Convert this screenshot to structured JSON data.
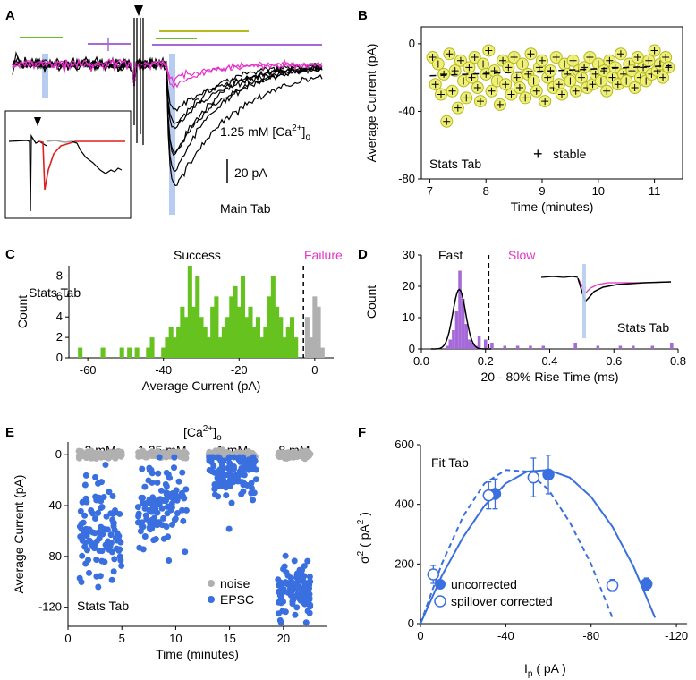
{
  "panels": {
    "A": {
      "letter": "A",
      "conc": "1.25 mM [Ca",
      "conc_sup": "2+",
      "conc_sub": "o",
      "scale": "20 pA",
      "tab": "Main Tab"
    },
    "B": {
      "letter": "B",
      "tab": "Stats Tab",
      "legend": "stable"
    },
    "C": {
      "letter": "C",
      "tab": "Stats Tab",
      "success": "Success",
      "failure": "Failure"
    },
    "D": {
      "letter": "D",
      "tab": "Stats Tab",
      "fast": "Fast",
      "slow": "Slow"
    },
    "E": {
      "letter": "E",
      "tab": "Stats Tab",
      "header": "[Ca",
      "header_sup": "2+",
      "header_sub": "o",
      "legend_noise": "noise",
      "legend_epsc": "EPSC"
    },
    "F": {
      "letter": "F",
      "tab": "Fit Tab",
      "legend_unc": "uncorrected",
      "legend_sc": "spillover corrected",
      "ylabel_a": "σ",
      "ylabel_sup1": "2",
      "ylabel_b": " ( pA",
      "ylabel_sup2": "2",
      "ylabel_c": " )",
      "xlabel_a": "I",
      "xlabel_sub": "p",
      "xlabel_b": " ( pA )"
    }
  },
  "colors": {
    "green": "#66c31f",
    "magenta": "#e432c8",
    "purple": "#a66ad8",
    "olive": "#b8b820",
    "blue": "#3a6fe0",
    "gray": "#b0b0b0",
    "lightblue": "#b8ccf0",
    "yellow": "#eef07a"
  },
  "chart_data": [
    {
      "panel": "B",
      "type": "scatter",
      "xlabel": "Time (minutes)",
      "ylabel": "Average Current (pA)",
      "xlim": [
        6.85,
        11.5
      ],
      "ylim": [
        -80,
        10
      ],
      "xticks": [
        7,
        8,
        9,
        10,
        11
      ],
      "yticks": [
        0,
        -40,
        -80
      ],
      "series": [
        {
          "name": "stable",
          "x": [
            7.05,
            7.1,
            7.15,
            7.2,
            7.25,
            7.3,
            7.35,
            7.4,
            7.45,
            7.5,
            7.55,
            7.6,
            7.65,
            7.7,
            7.75,
            7.8,
            7.85,
            7.9,
            7.95,
            8.0,
            8.05,
            8.1,
            8.15,
            8.2,
            8.25,
            8.3,
            8.35,
            8.4,
            8.45,
            8.5,
            8.55,
            8.6,
            8.65,
            8.7,
            8.75,
            8.8,
            8.85,
            8.9,
            8.95,
            9.0,
            9.05,
            9.1,
            9.15,
            9.2,
            9.25,
            9.3,
            9.35,
            9.4,
            9.45,
            9.5,
            9.55,
            9.6,
            9.65,
            9.7,
            9.75,
            9.8,
            9.85,
            9.9,
            9.95,
            10.0,
            10.05,
            10.1,
            10.15,
            10.2,
            10.25,
            10.3,
            10.35,
            10.4,
            10.45,
            10.5,
            10.55,
            10.6,
            10.65,
            10.7,
            10.75,
            10.8,
            10.85,
            10.9,
            10.95,
            11.0,
            11.05,
            11.1,
            11.15,
            11.2,
            11.25
          ],
          "y": [
            -8,
            -24,
            -12,
            -30,
            -18,
            -46,
            -6,
            -28,
            -16,
            -38,
            -10,
            -22,
            -32,
            -14,
            -20,
            -8,
            -26,
            -34,
            -12,
            -18,
            -4,
            -28,
            -16,
            -22,
            -36,
            -10,
            -24,
            -14,
            -30,
            -8,
            -20,
            -26,
            -12,
            -32,
            -18,
            -6,
            -22,
            -28,
            -14,
            -10,
            -34,
            -20,
            -16,
            -26,
            -8,
            -24,
            -30,
            -12,
            -18,
            -22,
            -10,
            -28,
            -16,
            -20,
            -14,
            -26,
            -8,
            -24,
            -18,
            -12,
            -22,
            -16,
            -28,
            -10,
            -20,
            -14,
            -24,
            -6,
            -18,
            -22,
            -12,
            -16,
            -26,
            -8,
            -20,
            -14,
            -22,
            -10,
            -18,
            -4,
            -16,
            -12,
            -20,
            -8,
            -14
          ]
        }
      ],
      "fit": {
        "x": [
          7.0,
          11.3
        ],
        "y": [
          -19,
          -13
        ]
      }
    },
    {
      "panel": "C",
      "type": "bar",
      "xlabel": "Average Current (pA)",
      "ylabel": "Count",
      "xlim": [
        -65,
        5
      ],
      "ylim": [
        0,
        9
      ],
      "xticks": [
        -60,
        -40,
        -20,
        0
      ],
      "yticks": [
        0,
        2,
        4,
        6,
        8
      ],
      "bin_width": 1.2,
      "threshold": -3,
      "series": [
        {
          "name": "Success",
          "color": "green",
          "x": [
            -62,
            -56,
            -51,
            -49,
            -47,
            -44,
            -43,
            -40,
            -39,
            -38,
            -37,
            -36,
            -35,
            -34,
            -33,
            -32,
            -31,
            -30,
            -29,
            -28,
            -27,
            -26,
            -25,
            -24,
            -23,
            -22,
            -21,
            -20,
            -19,
            -18,
            -17,
            -16,
            -15,
            -14,
            -13,
            -12,
            -11,
            -10,
            -9,
            -8,
            -7,
            -6,
            -5
          ],
          "values": [
            1,
            1,
            1,
            1,
            1,
            1,
            2,
            1,
            2,
            3,
            2,
            3,
            5,
            4,
            9,
            5,
            8,
            4,
            3,
            2,
            5,
            6,
            2,
            3,
            4,
            6,
            7,
            5,
            8,
            4,
            5,
            3,
            4,
            2,
            3,
            6,
            8,
            5,
            4,
            2,
            3,
            4,
            2
          ]
        },
        {
          "name": "Failure",
          "color": "gray",
          "x": [
            -2,
            -1,
            0,
            1,
            2
          ],
          "values": [
            4,
            2,
            6,
            5,
            1
          ]
        }
      ]
    },
    {
      "panel": "D",
      "type": "bar",
      "xlabel": "20 - 80% Rise Time (ms)",
      "ylabel": "Count",
      "xlim": [
        0,
        0.8
      ],
      "ylim": [
        0,
        30
      ],
      "xticks": [
        0.0,
        0.2,
        0.4,
        0.6,
        0.8
      ],
      "yticks": [
        0,
        10,
        20,
        30
      ],
      "threshold": 0.21,
      "series": [
        {
          "name": "rise time",
          "color": "purple",
          "x": [
            0.08,
            0.09,
            0.1,
            0.11,
            0.12,
            0.13,
            0.14,
            0.15,
            0.16,
            0.17,
            0.18,
            0.2,
            0.22,
            0.26,
            0.3,
            0.34,
            0.38,
            0.48,
            0.55,
            0.62,
            0.66,
            0.72,
            0.78
          ],
          "values": [
            1,
            3,
            6,
            12,
            25,
            16,
            8,
            3,
            2,
            1,
            4,
            3,
            2,
            1,
            1,
            1,
            1,
            2,
            1,
            1,
            1,
            1,
            2
          ]
        }
      ],
      "fit": {
        "type": "gaussian",
        "mean": 0.118,
        "sd": 0.02,
        "peak": 19
      }
    },
    {
      "panel": "E",
      "type": "scatter",
      "xlabel": "Time (minutes)",
      "ylabel": "Average Current (pA)",
      "xlim": [
        0,
        24
      ],
      "ylim": [
        -135,
        10
      ],
      "xticks": [
        0,
        5,
        10,
        15,
        20
      ],
      "yticks": [
        0,
        -40,
        -80,
        -120
      ],
      "groups": [
        {
          "label": "2 mM",
          "x_range": [
            1,
            5
          ],
          "noise": [
            0,
            4
          ],
          "epsc_mean": -60,
          "epsc_sd": 22
        },
        {
          "label": "1.25 mM",
          "x_range": [
            6.5,
            11
          ],
          "noise": [
            0,
            4
          ],
          "epsc_mean": -40,
          "epsc_sd": 18
        },
        {
          "label": "1 mM",
          "x_range": [
            13,
            17.5
          ],
          "noise": [
            0,
            4
          ],
          "epsc_mean": -14,
          "epsc_sd": 10
        },
        {
          "label": "8 mM",
          "x_range": [
            19.5,
            22.5
          ],
          "noise": [
            0,
            4
          ],
          "epsc_mean": -105,
          "epsc_sd": 10
        }
      ],
      "series": [
        {
          "name": "noise",
          "color": "gray"
        },
        {
          "name": "EPSC",
          "color": "blue"
        }
      ]
    },
    {
      "panel": "F",
      "type": "scatter",
      "xlabel": "Ip ( pA )",
      "ylabel": "σ2 ( pA2 )",
      "xlim": [
        0,
        -125
      ],
      "ylim": [
        0,
        600
      ],
      "xticks": [
        0,
        -40,
        -80,
        -120
      ],
      "yticks": [
        0,
        200,
        400,
        600
      ],
      "series": [
        {
          "name": "uncorrected",
          "x": [
            -35,
            -60,
            -106
          ],
          "y": [
            435,
            500,
            133
          ],
          "err": [
            50,
            65,
            20
          ]
        },
        {
          "name": "spillover corrected",
          "x": [
            -6,
            -32,
            -53,
            -90
          ],
          "y": [
            165,
            430,
            490,
            128
          ],
          "err": [
            30,
            45,
            65,
            20
          ]
        }
      ],
      "fits": [
        {
          "name": "uncorrected fit",
          "x": [
            0,
            -10,
            -20,
            -30,
            -40,
            -50,
            -60,
            -70,
            -80,
            -90,
            -100,
            -110
          ],
          "y": [
            0,
            160,
            290,
            395,
            470,
            510,
            515,
            490,
            425,
            325,
            190,
            20
          ]
        },
        {
          "name": "corrected fit",
          "x": [
            0,
            -10,
            -20,
            -30,
            -40,
            -50,
            -60,
            -70,
            -80,
            -90
          ],
          "y": [
            0,
            200,
            360,
            470,
            515,
            510,
            450,
            340,
            200,
            20
          ]
        }
      ]
    }
  ]
}
